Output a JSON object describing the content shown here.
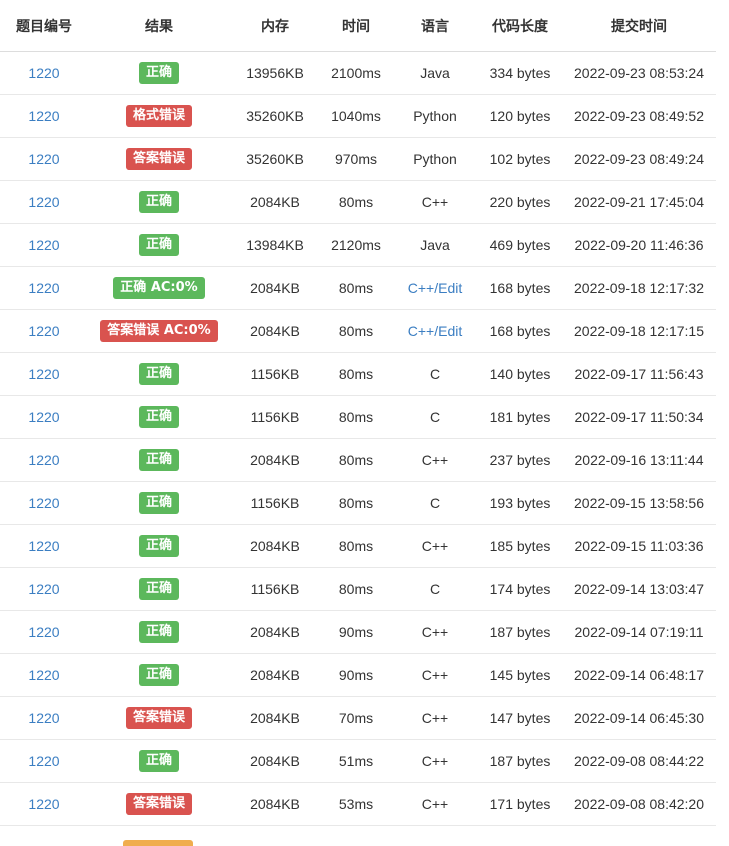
{
  "headers": {
    "problem_id": "题目编号",
    "result": "结果",
    "memory": "内存",
    "time": "时间",
    "language": "语言",
    "code_length": "代码长度",
    "submit_time": "提交时间"
  },
  "colors": {
    "accepted": "#5cb85c",
    "error": "#d9534f",
    "pending": "#f0ad4e",
    "link": "#3b7ec2"
  },
  "rows": [
    {
      "pid": "1220",
      "result": "正确",
      "status": "ok",
      "memory": "13956KB",
      "time": "2100ms",
      "lang": "Java",
      "lang_link": false,
      "length": "334 bytes",
      "submitted": "2022-09-23 08:53:24"
    },
    {
      "pid": "1220",
      "result": "格式错误",
      "status": "err",
      "memory": "35260KB",
      "time": "1040ms",
      "lang": "Python",
      "lang_link": false,
      "length": "120 bytes",
      "submitted": "2022-09-23 08:49:52"
    },
    {
      "pid": "1220",
      "result": "答案错误",
      "status": "err",
      "memory": "35260KB",
      "time": "970ms",
      "lang": "Python",
      "lang_link": false,
      "length": "102 bytes",
      "submitted": "2022-09-23 08:49:24"
    },
    {
      "pid": "1220",
      "result": "正确",
      "status": "ok",
      "memory": "2084KB",
      "time": "80ms",
      "lang": "C++",
      "lang_link": false,
      "length": "220 bytes",
      "submitted": "2022-09-21 17:45:04"
    },
    {
      "pid": "1220",
      "result": "正确",
      "status": "ok",
      "memory": "13984KB",
      "time": "2120ms",
      "lang": "Java",
      "lang_link": false,
      "length": "469 bytes",
      "submitted": "2022-09-20 11:46:36"
    },
    {
      "pid": "1220",
      "result": "正确 AC:0%",
      "status": "ok",
      "memory": "2084KB",
      "time": "80ms",
      "lang": "C++/Edit",
      "lang_link": true,
      "length": "168 bytes",
      "submitted": "2022-09-18 12:17:32"
    },
    {
      "pid": "1220",
      "result": "答案错误 AC:0%",
      "status": "err",
      "memory": "2084KB",
      "time": "80ms",
      "lang": "C++/Edit",
      "lang_link": true,
      "length": "168 bytes",
      "submitted": "2022-09-18 12:17:15"
    },
    {
      "pid": "1220",
      "result": "正确",
      "status": "ok",
      "memory": "1156KB",
      "time": "80ms",
      "lang": "C",
      "lang_link": false,
      "length": "140 bytes",
      "submitted": "2022-09-17 11:56:43"
    },
    {
      "pid": "1220",
      "result": "正确",
      "status": "ok",
      "memory": "1156KB",
      "time": "80ms",
      "lang": "C",
      "lang_link": false,
      "length": "181 bytes",
      "submitted": "2022-09-17 11:50:34"
    },
    {
      "pid": "1220",
      "result": "正确",
      "status": "ok",
      "memory": "2084KB",
      "time": "80ms",
      "lang": "C++",
      "lang_link": false,
      "length": "237 bytes",
      "submitted": "2022-09-16 13:11:44"
    },
    {
      "pid": "1220",
      "result": "正确",
      "status": "ok",
      "memory": "1156KB",
      "time": "80ms",
      "lang": "C",
      "lang_link": false,
      "length": "193 bytes",
      "submitted": "2022-09-15 13:58:56"
    },
    {
      "pid": "1220",
      "result": "正确",
      "status": "ok",
      "memory": "2084KB",
      "time": "80ms",
      "lang": "C++",
      "lang_link": false,
      "length": "185 bytes",
      "submitted": "2022-09-15 11:03:36"
    },
    {
      "pid": "1220",
      "result": "正确",
      "status": "ok",
      "memory": "1156KB",
      "time": "80ms",
      "lang": "C",
      "lang_link": false,
      "length": "174 bytes",
      "submitted": "2022-09-14 13:03:47"
    },
    {
      "pid": "1220",
      "result": "正确",
      "status": "ok",
      "memory": "2084KB",
      "time": "90ms",
      "lang": "C++",
      "lang_link": false,
      "length": "187 bytes",
      "submitted": "2022-09-14 07:19:11"
    },
    {
      "pid": "1220",
      "result": "正确",
      "status": "ok",
      "memory": "2084KB",
      "time": "90ms",
      "lang": "C++",
      "lang_link": false,
      "length": "145 bytes",
      "submitted": "2022-09-14 06:48:17"
    },
    {
      "pid": "1220",
      "result": "答案错误",
      "status": "err",
      "memory": "2084KB",
      "time": "70ms",
      "lang": "C++",
      "lang_link": false,
      "length": "147 bytes",
      "submitted": "2022-09-14 06:45:30"
    },
    {
      "pid": "1220",
      "result": "正确",
      "status": "ok",
      "memory": "2084KB",
      "time": "51ms",
      "lang": "C++",
      "lang_link": false,
      "length": "187 bytes",
      "submitted": "2022-09-08 08:44:22"
    },
    {
      "pid": "1220",
      "result": "答案错误",
      "status": "err",
      "memory": "2084KB",
      "time": "53ms",
      "lang": "C++",
      "lang_link": false,
      "length": "171 bytes",
      "submitted": "2022-09-08 08:42:20"
    }
  ]
}
